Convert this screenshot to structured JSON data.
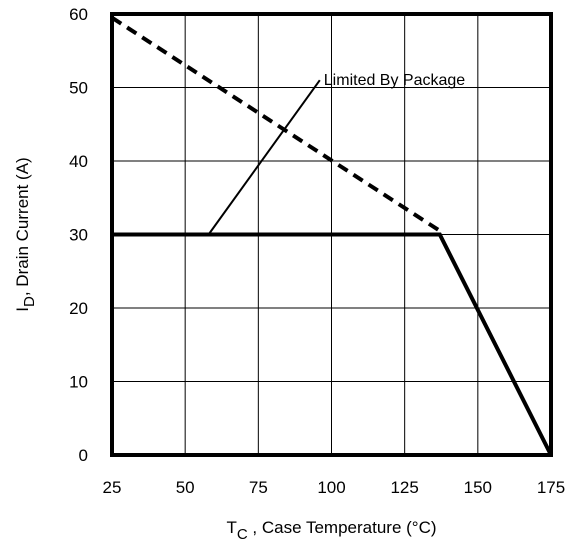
{
  "chart_data": {
    "type": "line",
    "xlabel_main": "T",
    "xlabel_sub": "C",
    "xlabel_rest": " , Case Temperature (°C)",
    "ylabel_main": "I",
    "ylabel_sub": "D",
    "ylabel_rest": ",  Drain Current (A)",
    "xlim": [
      25,
      175
    ],
    "ylim": [
      0,
      60
    ],
    "x_ticks": [
      "25",
      "50",
      "75",
      "100",
      "125",
      "150",
      "175"
    ],
    "y_ticks": [
      "0",
      "10",
      "20",
      "30",
      "40",
      "50",
      "60"
    ],
    "grid": true,
    "series": [
      {
        "style": "dashed",
        "x": [
          25,
          137
        ],
        "y": [
          59.5,
          30.5
        ]
      },
      {
        "style": "solid",
        "x": [
          25,
          137,
          175
        ],
        "y": [
          30,
          30,
          0
        ]
      }
    ],
    "annotation": {
      "text": "Limited By Package",
      "leader_x": [
        58,
        96
      ],
      "leader_y": [
        30,
        51
      ]
    }
  }
}
